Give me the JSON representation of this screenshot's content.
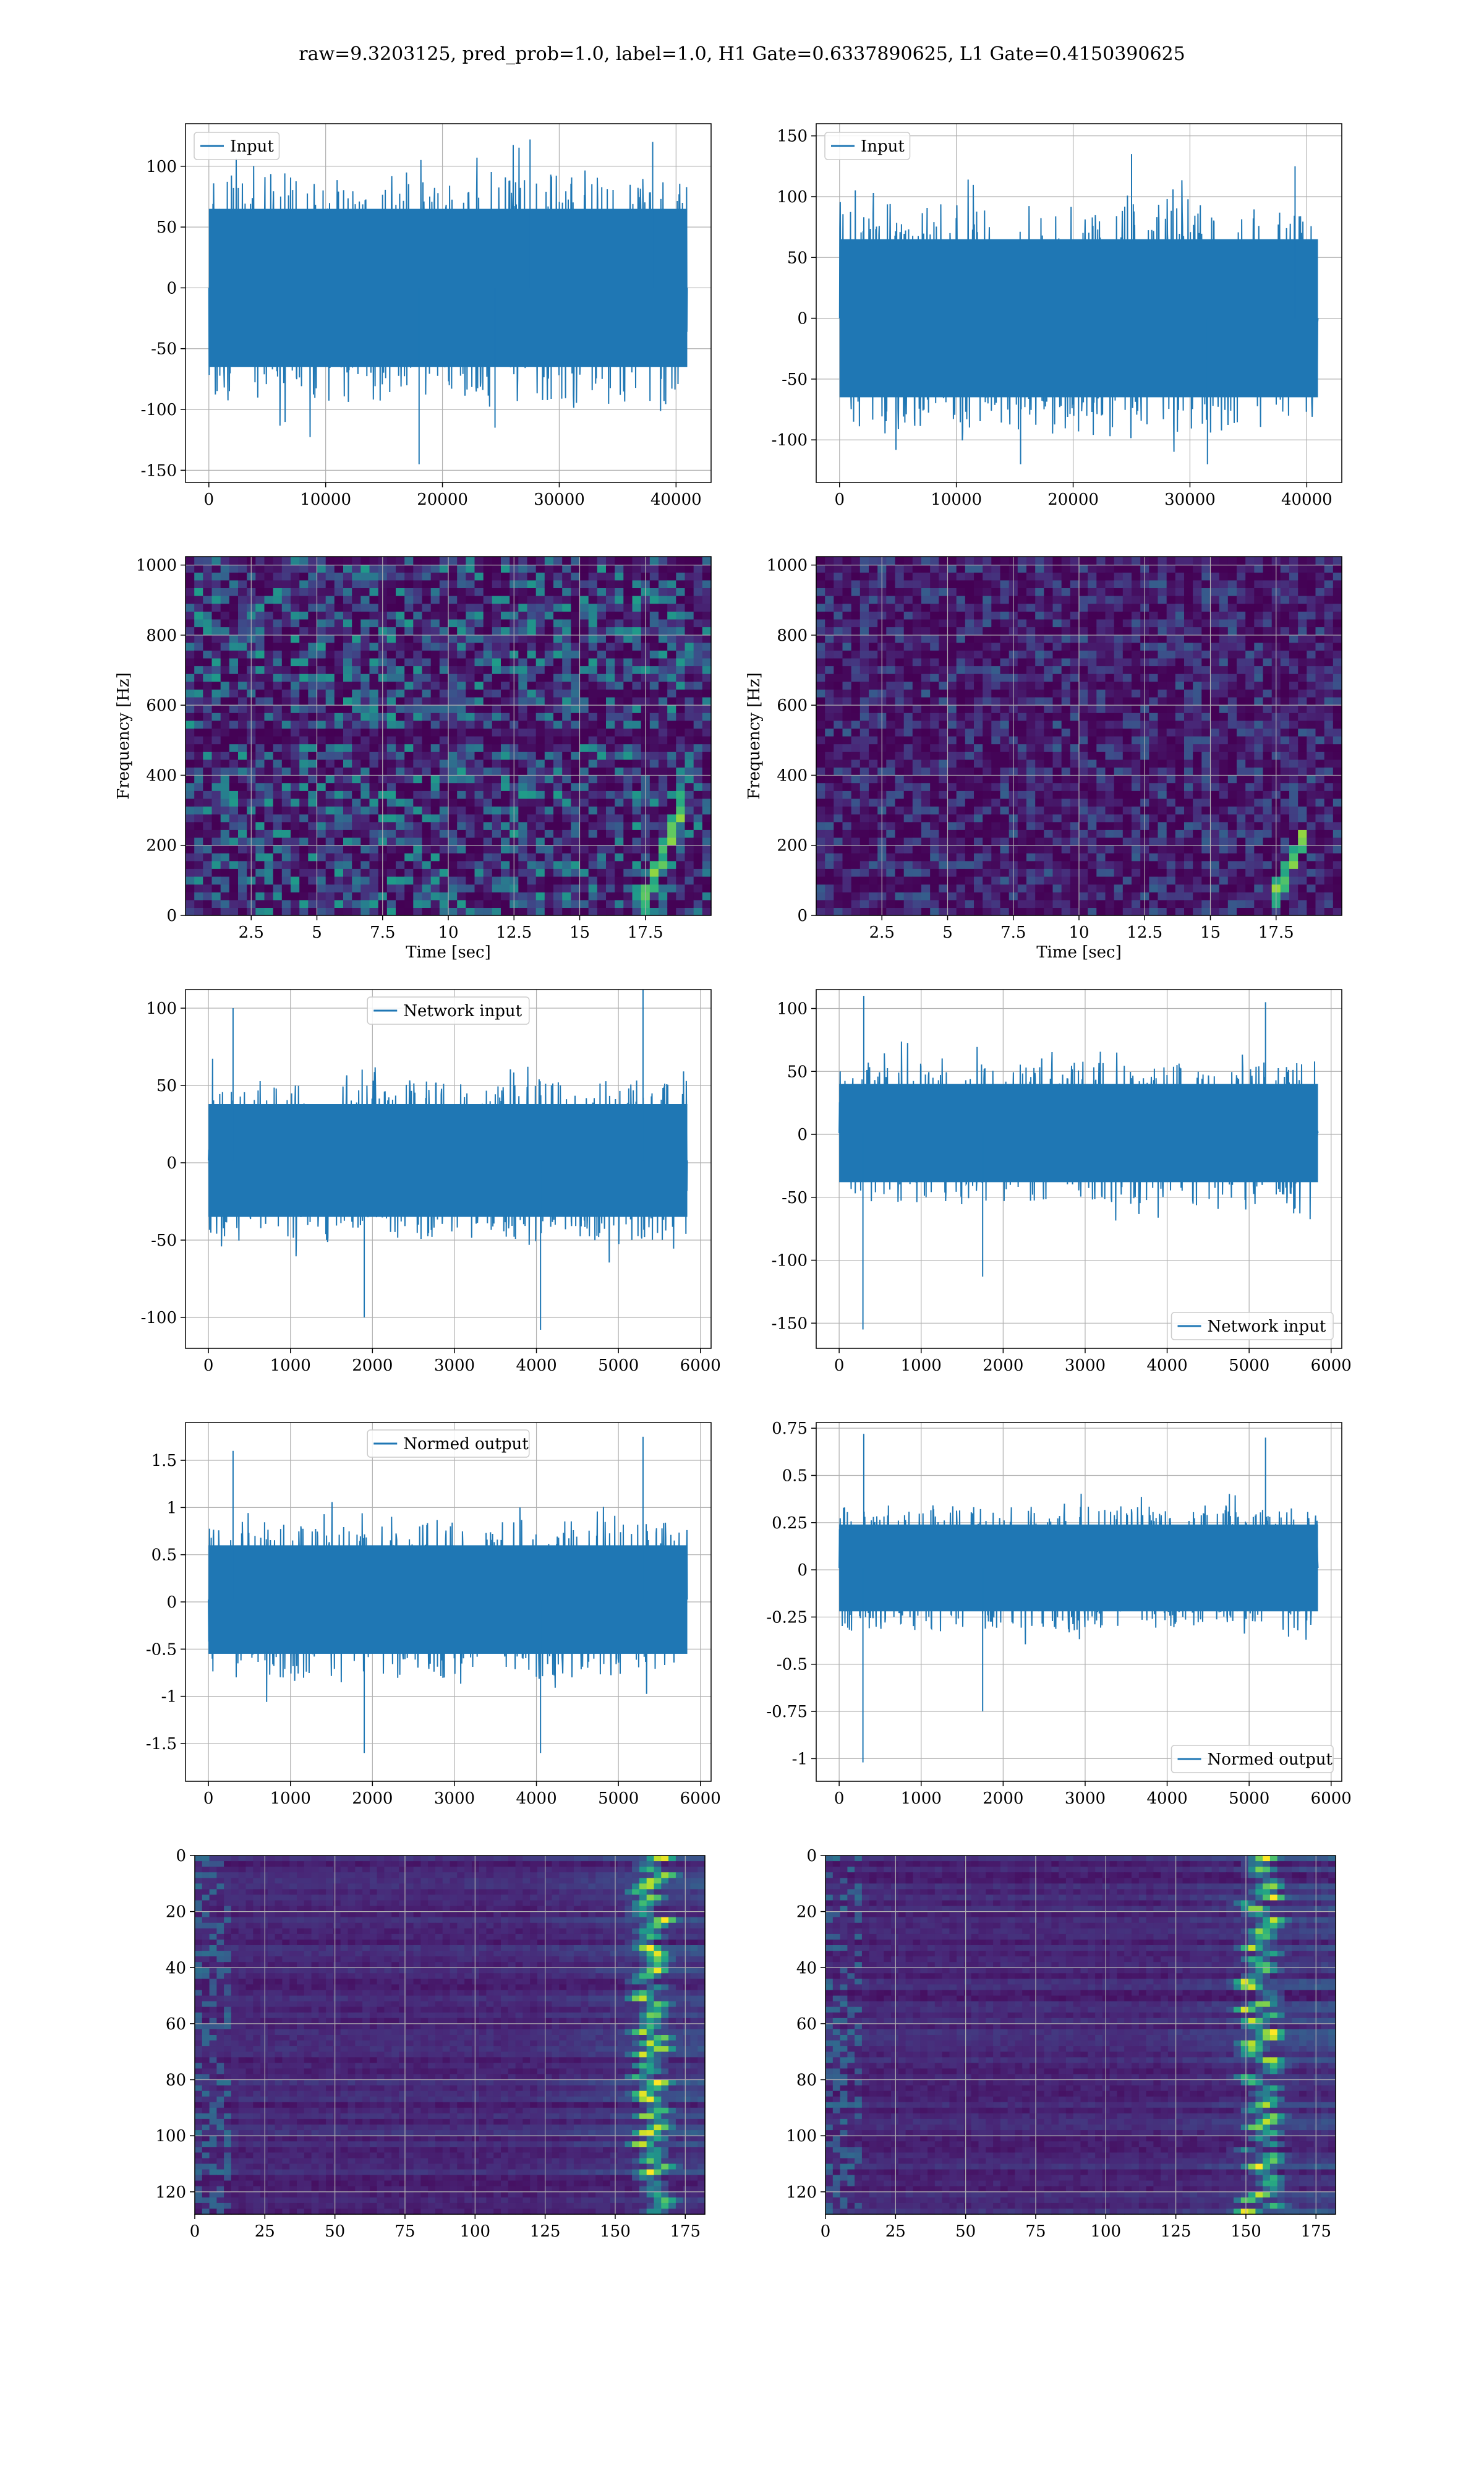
{
  "figure": {
    "title": "raw=9.3203125, pred_prob=1.0, label=1.0, H1 Gate=0.6337890625, L1 Gate=0.4150390625"
  },
  "colors": {
    "line": "#1f77b4",
    "grid": "#b0b0b0",
    "axes": "#000000",
    "heatmap_low": "#440154",
    "heatmap_high": "#fde725"
  },
  "chart_data": [
    {
      "id": "input-h1",
      "type": "line",
      "row": 0,
      "col": 0,
      "series": [
        {
          "name": "Input",
          "kind": "noise",
          "n_samples": 40960,
          "x_range": [
            0,
            40960
          ],
          "envelope": [
            -65,
            65
          ],
          "spikes": [
            [
              18000,
              -145
            ],
            [
              27500,
              122
            ],
            [
              24500,
              -115
            ],
            [
              38000,
              120
            ]
          ]
        }
      ],
      "xlim": [
        -2000,
        43000
      ],
      "ylim": [
        -160,
        135
      ],
      "xticks": [
        0,
        10000,
        20000,
        30000,
        40000
      ],
      "yticks": [
        -150,
        -100,
        -50,
        0,
        50,
        100
      ],
      "legend": "upper left",
      "grid": true
    },
    {
      "id": "input-l1",
      "type": "line",
      "row": 0,
      "col": 1,
      "series": [
        {
          "name": "Input",
          "kind": "noise",
          "n_samples": 40960,
          "x_range": [
            0,
            40960
          ],
          "envelope": [
            -65,
            65
          ],
          "spikes": [
            [
              25000,
              135
            ],
            [
              31500,
              -120
            ],
            [
              15500,
              -120
            ],
            [
              39000,
              125
            ]
          ]
        }
      ],
      "xlim": [
        -2000,
        43000
      ],
      "ylim": [
        -135,
        160
      ],
      "xticks": [
        0,
        10000,
        20000,
        30000,
        40000
      ],
      "yticks": [
        -100,
        -50,
        0,
        50,
        100,
        150
      ],
      "legend": "upper left",
      "grid": true
    },
    {
      "id": "spectrogram-h1",
      "type": "heatmap",
      "row": 1,
      "col": 0,
      "xlabel": "Time [sec]",
      "ylabel": "Frequency [Hz]",
      "xlim": [
        0,
        20
      ],
      "ylim": [
        0,
        1024
      ],
      "xticks": [
        2.5,
        5.0,
        7.5,
        10.0,
        12.5,
        15.0,
        17.5
      ],
      "yticks": [
        0,
        200,
        400,
        600,
        800,
        1000
      ],
      "brightness": 0.55,
      "dark_band": [
        480,
        530
      ],
      "chirp": {
        "t_end": 18.6,
        "f_end": 260
      },
      "grid": true
    },
    {
      "id": "spectrogram-l1",
      "type": "heatmap",
      "row": 1,
      "col": 1,
      "xlabel": "Time [sec]",
      "ylabel": "Frequency [Hz]",
      "xlim": [
        0,
        20
      ],
      "ylim": [
        0,
        1024
      ],
      "xticks": [
        2.5,
        5.0,
        7.5,
        10.0,
        12.5,
        15.0,
        17.5
      ],
      "yticks": [
        0,
        200,
        400,
        600,
        800,
        1000
      ],
      "brightness": 0.3,
      "chirp": {
        "t_end": 18.4,
        "f_end": 200
      },
      "grid": true
    },
    {
      "id": "network-input-h1",
      "type": "line",
      "row": 2,
      "col": 0,
      "series": [
        {
          "name": "Network input",
          "kind": "noise",
          "n_samples": 5840,
          "x_range": [
            0,
            5840
          ],
          "envelope": [
            -35,
            38
          ],
          "spikes": [
            [
              5300,
              112
            ],
            [
              4050,
              -108
            ],
            [
              1900,
              -100
            ],
            [
              300,
              100
            ]
          ]
        }
      ],
      "xlim": [
        -280,
        6130
      ],
      "ylim": [
        -120,
        112
      ],
      "xticks": [
        0,
        1000,
        2000,
        3000,
        4000,
        5000,
        6000
      ],
      "yticks": [
        -100,
        -50,
        0,
        50,
        100
      ],
      "legend": "upper center",
      "grid": true
    },
    {
      "id": "network-input-l1",
      "type": "line",
      "row": 2,
      "col": 1,
      "series": [
        {
          "name": "Network input",
          "kind": "noise",
          "n_samples": 5840,
          "x_range": [
            0,
            5840
          ],
          "envelope": [
            -38,
            40
          ],
          "spikes": [
            [
              290,
              -155
            ],
            [
              300,
              110
            ],
            [
              5200,
              105
            ],
            [
              1750,
              -113
            ]
          ]
        }
      ],
      "xlim": [
        -280,
        6130
      ],
      "ylim": [
        -170,
        115
      ],
      "xticks": [
        0,
        1000,
        2000,
        3000,
        4000,
        5000,
        6000
      ],
      "yticks": [
        -150,
        -100,
        -50,
        0,
        50,
        100
      ],
      "legend": "lower right",
      "grid": true
    },
    {
      "id": "normed-output-h1",
      "type": "line",
      "row": 3,
      "col": 0,
      "series": [
        {
          "name": "Normed output",
          "kind": "noise",
          "n_samples": 5840,
          "x_range": [
            0,
            5840
          ],
          "envelope": [
            -0.55,
            0.6
          ],
          "spikes": [
            [
              5300,
              1.75
            ],
            [
              1900,
              -1.6
            ],
            [
              4050,
              -1.6
            ],
            [
              300,
              1.6
            ]
          ]
        }
      ],
      "xlim": [
        -280,
        6130
      ],
      "ylim": [
        -1.9,
        1.9
      ],
      "xticks": [
        0,
        1000,
        2000,
        3000,
        4000,
        5000,
        6000
      ],
      "yticks": [
        -1.5,
        -1.0,
        -0.5,
        0.0,
        0.5,
        1.0,
        1.5
      ],
      "legend": "upper center",
      "grid": true
    },
    {
      "id": "normed-output-l1",
      "type": "line",
      "row": 3,
      "col": 1,
      "series": [
        {
          "name": "Normed output",
          "kind": "noise",
          "n_samples": 5840,
          "x_range": [
            0,
            5840
          ],
          "envelope": [
            -0.22,
            0.24
          ],
          "spikes": [
            [
              290,
              -1.02
            ],
            [
              300,
              0.72
            ],
            [
              5200,
              0.7
            ],
            [
              1750,
              -0.75
            ]
          ]
        }
      ],
      "xlim": [
        -280,
        6130
      ],
      "ylim": [
        -1.12,
        0.78
      ],
      "xticks": [
        0,
        1000,
        2000,
        3000,
        4000,
        5000,
        6000
      ],
      "yticks": [
        -1.0,
        -0.75,
        -0.5,
        -0.25,
        0.0,
        0.25,
        0.5,
        0.75
      ],
      "legend": "lower right",
      "grid": true
    },
    {
      "id": "feature-map-h1",
      "type": "heatmap",
      "row": 4,
      "col": 0,
      "xlim": [
        0,
        182
      ],
      "ylim": [
        128,
        0
      ],
      "xticks": [
        0,
        25,
        50,
        75,
        100,
        125,
        150,
        175
      ],
      "yticks": [
        0,
        20,
        40,
        60,
        80,
        100,
        120
      ],
      "ridge_col": 163,
      "grid": true
    },
    {
      "id": "feature-map-l1",
      "type": "heatmap",
      "row": 4,
      "col": 1,
      "xlim": [
        0,
        182
      ],
      "ylim": [
        128,
        0
      ],
      "xticks": [
        0,
        25,
        50,
        75,
        100,
        125,
        150,
        175
      ],
      "yticks": [
        0,
        20,
        40,
        60,
        80,
        100,
        120
      ],
      "ridge_col": 155,
      "grid": true
    }
  ]
}
